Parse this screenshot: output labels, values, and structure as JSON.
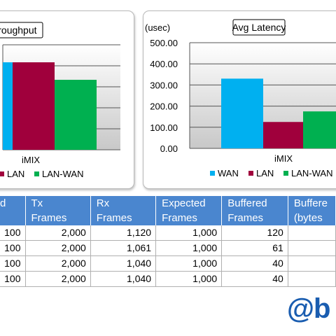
{
  "colors": {
    "WAN": "#00b0f0",
    "LAN": "#a0003c",
    "LAN-WAN": "#00b050",
    "header_bg": "#4a86cf",
    "logo": "#1a5db0"
  },
  "chart_data": [
    {
      "type": "bar",
      "title": "hroughput",
      "categories": [
        "iMIX"
      ],
      "xlabel": "iMIX",
      "ylabel": "",
      "series": [
        {
          "name": "LAN",
          "values": [
            100
          ]
        },
        {
          "name": "LAN-WAN",
          "values": [
            80
          ]
        }
      ],
      "ylim": [
        0,
        120
      ],
      "legend_items": [
        "LAN",
        "LAN-WAN"
      ],
      "grid": true,
      "legend_position": "bottom",
      "note": "cropped on left edge; a partially visible blue bar is cut off"
    },
    {
      "type": "bar",
      "title": "Avg Latency",
      "categories": [
        "iMIX"
      ],
      "xlabel": "iMIX",
      "ylabel": "(usec)",
      "series": [
        {
          "name": "WAN",
          "values": [
            330
          ]
        },
        {
          "name": "LAN",
          "values": [
            125
          ]
        },
        {
          "name": "LAN-WAN",
          "values": [
            175
          ]
        }
      ],
      "ylim": [
        0,
        500
      ],
      "yticks": [
        "500.00",
        "400.00",
        "300.00",
        "200.00",
        "100.00",
        "0.00"
      ],
      "legend_items": [
        "WAN",
        "LAN",
        "LAN-WAN"
      ],
      "grid": true,
      "legend_position": "bottom"
    }
  ],
  "table": {
    "headers": [
      [
        "d",
        ""
      ],
      [
        "Tx",
        "Frames"
      ],
      [
        "Rx",
        "Frames"
      ],
      [
        "Expected",
        "Frames"
      ],
      [
        "Buffered",
        "Frames"
      ],
      [
        "Buffere",
        "(bytes"
      ]
    ],
    "rows": [
      [
        "100",
        "2,000",
        "1,120",
        "1,000",
        "120",
        ""
      ],
      [
        "100",
        "2,000",
        "1,061",
        "1,000",
        "61",
        ""
      ],
      [
        "100",
        "2,000",
        "1,040",
        "1,000",
        "40",
        ""
      ],
      [
        "100",
        "2,000",
        "1,040",
        "1,000",
        "40",
        ""
      ]
    ]
  },
  "logo_text": "@b"
}
